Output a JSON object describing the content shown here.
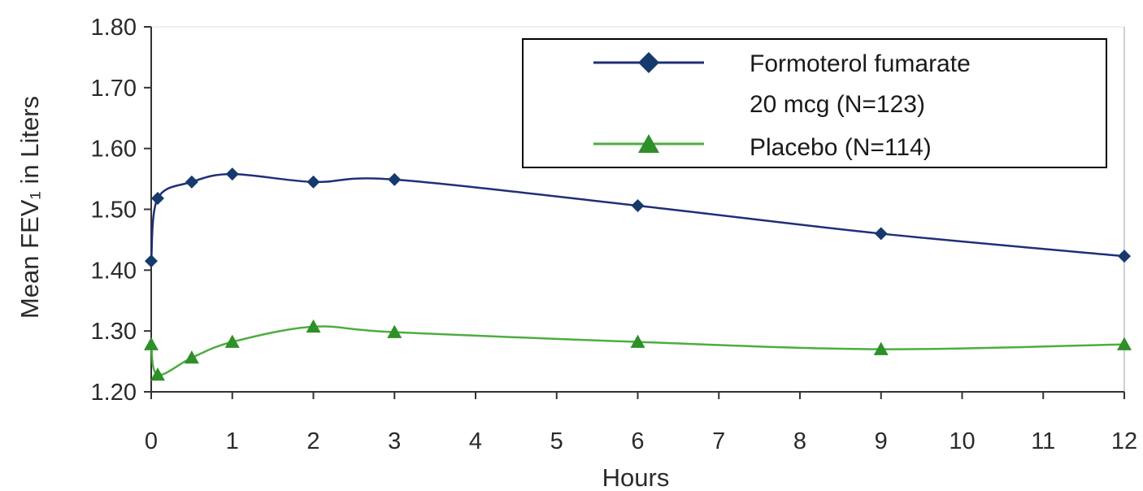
{
  "chart_data": {
    "type": "line",
    "xlabel": "Hours",
    "ylabel": "Mean FEV₁ in Liters",
    "xlim": [
      0,
      12
    ],
    "ylim": [
      1.2,
      1.8
    ],
    "xticks": [
      "0",
      "1",
      "2",
      "3",
      "4",
      "5",
      "6",
      "7",
      "8",
      "9",
      "10",
      "11",
      "12"
    ],
    "yticks": [
      "1.20",
      "1.30",
      "1.40",
      "1.50",
      "1.60",
      "1.70",
      "1.80"
    ],
    "grid": false,
    "legend_position": "top-right",
    "series": [
      {
        "name_line1": "Formoterol fumarate",
        "name_line2": "20 mcg (N=123)",
        "color": "#1f2f7a",
        "marker_color": "#163a6e",
        "marker": "diamond",
        "x": [
          0,
          0.08,
          0.5,
          1,
          2,
          3,
          6,
          9,
          12
        ],
        "y": [
          1.415,
          1.518,
          1.545,
          1.558,
          1.545,
          1.549,
          1.506,
          1.46,
          1.423
        ]
      },
      {
        "name_line1": "Placebo (N=114)",
        "name_line2": "",
        "color": "#4cae3f",
        "marker_color": "#2f8f28",
        "marker": "triangle",
        "x": [
          0,
          0.08,
          0.5,
          1,
          2,
          3,
          6,
          9,
          12
        ],
        "y": [
          1.278,
          1.228,
          1.256,
          1.282,
          1.307,
          1.298,
          1.282,
          1.27,
          1.278
        ]
      }
    ]
  }
}
